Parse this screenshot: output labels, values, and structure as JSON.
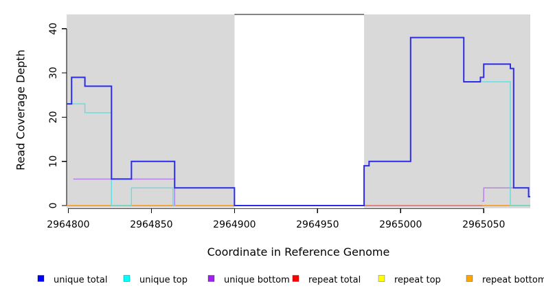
{
  "figure": {
    "background": "#ffffff",
    "panel_color": "#d9d9d9",
    "gap_border_color": "#5a5a5a",
    "axis_color": "#000000"
  },
  "chart_data": {
    "type": "line",
    "subtype": "step-coverage-plot",
    "title": "",
    "xlabel": "Coordinate in Reference Genome",
    "ylabel": "Read Coverage Depth",
    "x_range": [
      2964799,
      2965078
    ],
    "y_range": [
      0,
      43.2
    ],
    "x_ticks": [
      2964800,
      2964850,
      2964900,
      2964950,
      2965000,
      2965050
    ],
    "x_tick_labels": [
      "2964800",
      "2964850",
      "2964900",
      "2964950",
      "2965000",
      "2965050"
    ],
    "y_ticks": [
      0,
      10,
      20,
      30,
      40
    ],
    "y_tick_labels": [
      "0",
      "10",
      "20",
      "30",
      "40"
    ],
    "grid": false,
    "shaded_regions": [
      [
        2964799,
        2964900
      ],
      [
        2964978,
        2965078
      ]
    ],
    "gap_region": [
      2964900,
      2964978
    ],
    "legend_position": "bottom",
    "draw_order": [
      "repeat top",
      "repeat total",
      "repeat bottom",
      "unique bottom",
      "unique top",
      "unique total"
    ],
    "series": [
      {
        "name": "unique total",
        "legend_color": "#0000ff",
        "line_color": "#2b2be8",
        "width": 2,
        "segments": [
          [
            [
              2964799,
              23
            ],
            [
              2964802,
              29
            ],
            [
              2964810,
              27
            ],
            [
              2964826,
              6
            ],
            [
              2964838,
              10
            ],
            [
              2964864,
              4
            ],
            [
              2964900,
              0
            ],
            [
              2964978,
              9
            ],
            [
              2964981,
              10
            ],
            [
              2965006,
              38
            ],
            [
              2965038,
              28
            ],
            [
              2965048,
              29
            ],
            [
              2965050,
              32
            ],
            [
              2965066,
              31
            ],
            [
              2965068,
              4
            ],
            [
              2965077,
              2
            ],
            [
              2965078,
              2
            ]
          ]
        ]
      },
      {
        "name": "unique top",
        "legend_color": "#00ffff",
        "line_color": "#5edfe3",
        "width": 1.4,
        "segments": [
          [
            [
              2964799,
              23
            ],
            [
              2964810,
              21
            ],
            [
              2964826,
              0
            ],
            [
              2964838,
              4
            ],
            [
              2964863,
              0
            ],
            [
              2964864,
              0
            ]
          ],
          [
            [
              2965049,
              28
            ],
            [
              2965066,
              0
            ],
            [
              2965078,
              0
            ]
          ]
        ]
      },
      {
        "name": "unique bottom",
        "legend_color": "#a020f0",
        "line_color": "#b77be8",
        "width": 1.4,
        "segments": [
          [
            [
              2964803,
              6
            ],
            [
              2964864,
              0
            ]
          ],
          [
            [
              2965049,
              1
            ],
            [
              2965050,
              4
            ],
            [
              2965077,
              2
            ],
            [
              2965078,
              2
            ]
          ]
        ]
      },
      {
        "name": "repeat total",
        "legend_color": "#ff0000",
        "line_color": "#e25270",
        "width": 1.2,
        "segments": [
          [
            [
              2964799,
              0
            ],
            [
              2965078,
              0
            ]
          ]
        ]
      },
      {
        "name": "repeat top",
        "legend_color": "#ffff00",
        "line_color": "#f5e400",
        "width": 1.2,
        "segments": [
          [
            [
              2964799,
              0
            ],
            [
              2965078,
              0
            ]
          ]
        ]
      },
      {
        "name": "repeat bottom",
        "legend_color": "#ffa500",
        "line_color": "#ff9d1e",
        "width": 1.6,
        "segments": [
          [
            [
              2964799,
              0
            ],
            [
              2964900,
              0
            ]
          ],
          [
            [
              2965049,
              0
            ],
            [
              2965078,
              0
            ]
          ]
        ]
      }
    ]
  }
}
